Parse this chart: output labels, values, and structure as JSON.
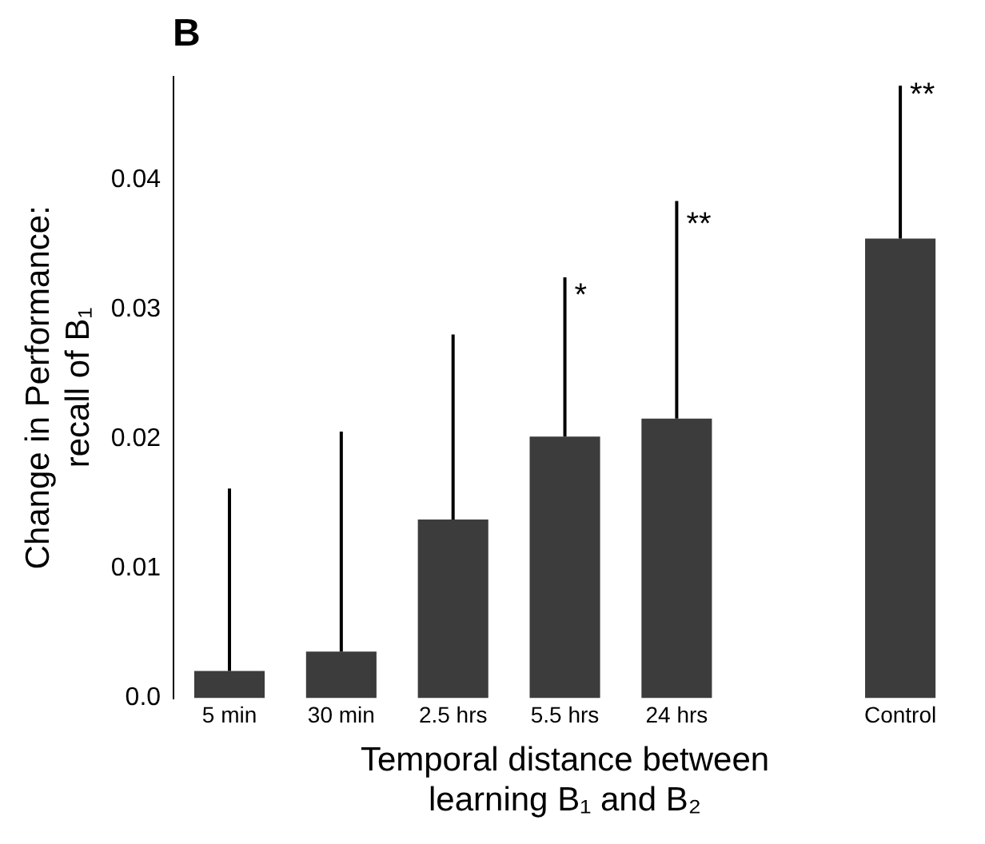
{
  "chart_data": {
    "type": "bar",
    "categories": [
      "5 min",
      "30 min",
      "2.5 hrs",
      "5.5 hrs",
      "24 hrs",
      null,
      "Control"
    ],
    "values": [
      0.0021,
      0.0036,
      0.0138,
      0.0202,
      0.0216,
      null,
      0.0355
    ],
    "errors": [
      [
        0.0021,
        0.0162
      ],
      [
        0.0036,
        0.0206
      ],
      [
        0.0138,
        0.0281
      ],
      [
        0.0202,
        0.0325
      ],
      [
        0.0216,
        0.0384
      ],
      null,
      [
        0.0355,
        0.0473
      ]
    ],
    "color": "#3c3c3c",
    "ylabel": "Change in Performance:\nrecall of B₁",
    "xlabel": "Temporal distance between\nlearning B₁ and B₂",
    "ylim": [
      0,
      0.048
    ],
    "yticks": [
      {
        "value": 0,
        "label": "0.0"
      },
      0.01,
      0.02,
      0.03,
      0.04
    ],
    "grid": false,
    "legend": false,
    "annotations": [
      "B",
      {
        "text": "*",
        "x": "5.5 hrs",
        "y": 0.031
      },
      {
        "text": "**",
        "x": "24 hrs",
        "y": 0.0365
      },
      {
        "text": "**",
        "x": "Control",
        "y": 0.0465
      }
    ]
  }
}
